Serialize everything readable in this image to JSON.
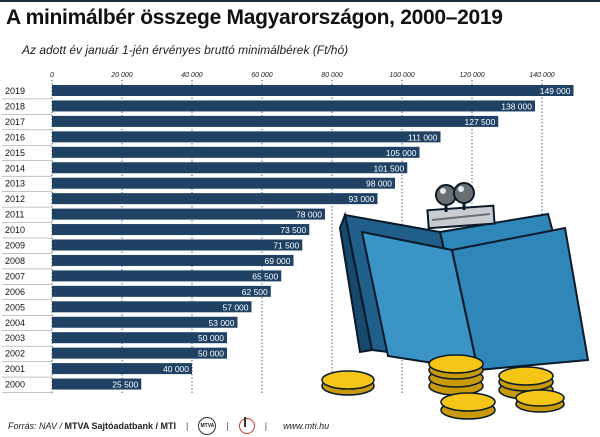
{
  "title": "A minimálbér összege Magyarországon, 2000–2019",
  "subtitle": "Az adott év január 1-jén érvényes bruttó minimálbérek (Ft/hó)",
  "footer": {
    "source_label": "Forrás: NAV / ",
    "source_bold": "MTVA Sajtóadatbank / MTI",
    "mtva_logo": "MTVA",
    "site": "www.mti.hu"
  },
  "chart_data": {
    "type": "bar",
    "orientation": "horizontal",
    "title": "A minimálbér összege Magyarországon, 2000–2019",
    "subtitle": "Az adott év január 1-jén érvényes bruttó minimálbérek (Ft/hó)",
    "categories": [
      "2019",
      "2018",
      "2017",
      "2016",
      "2015",
      "2014",
      "2013",
      "2012",
      "2011",
      "2010",
      "2009",
      "2008",
      "2007",
      "2006",
      "2005",
      "2004",
      "2003",
      "2002",
      "2001",
      "2000"
    ],
    "values": [
      149000,
      138000,
      127500,
      111000,
      105000,
      101500,
      98000,
      93000,
      78000,
      73500,
      71500,
      69000,
      65500,
      62500,
      57000,
      53000,
      50000,
      50000,
      40000,
      25500
    ],
    "value_labels": [
      "149 000",
      "138 000",
      "127 500",
      "111 000",
      "105 000",
      "101 500",
      "98 000",
      "93 000",
      "78 000",
      "73 500",
      "71 500",
      "69 000",
      "65 500",
      "62 500",
      "57 000",
      "53 000",
      "50 000",
      "50 000",
      "40 000",
      "25 500"
    ],
    "xticks": [
      0,
      20000,
      40000,
      60000,
      80000,
      100000,
      120000,
      140000
    ],
    "xtick_labels": [
      "0",
      "20 000",
      "40 000",
      "60 000",
      "80 000",
      "100 000",
      "120 000",
      "140 000"
    ],
    "xlim": [
      0,
      150000
    ],
    "grid": true,
    "bar_color": "#1e4164",
    "label_color": "#ffffff",
    "grid_color": "#1e4164",
    "coin_color": "#f5c518",
    "wallet_color": "#2f86b8"
  }
}
